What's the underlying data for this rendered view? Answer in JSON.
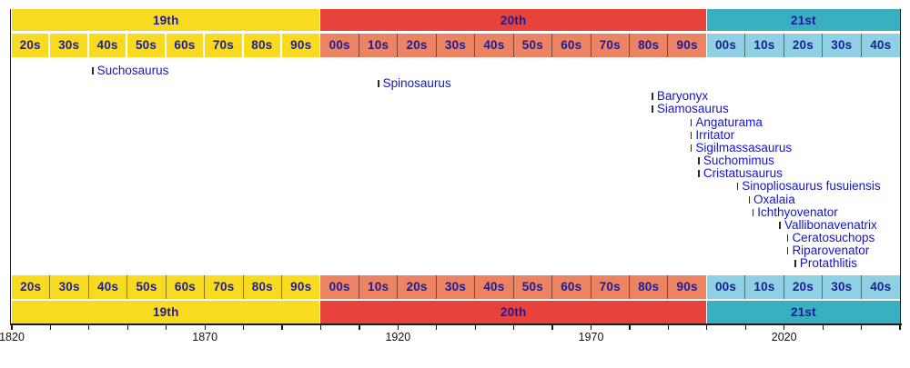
{
  "chart_data": {
    "type": "scatter",
    "subtype": "timeline-of-naming",
    "x_axis": {
      "min": 1820,
      "max": 2050,
      "tick_step_years": 10,
      "label_years": [
        1820,
        1870,
        1920,
        1970,
        2020
      ],
      "labels": [
        "1820",
        "1870",
        "1920",
        "1970",
        "2020"
      ]
    },
    "centuries": [
      {
        "label": "19th",
        "start": 1820,
        "end": 1900,
        "band_color": "#f8da21",
        "cell_color": "#f8da21",
        "top_separator": "#ffffff",
        "bottom_separator": "rgba(0,0,0,0.45)",
        "decade_labels": [
          "20s",
          "30s",
          "40s",
          "50s",
          "60s",
          "70s",
          "80s",
          "90s"
        ]
      },
      {
        "label": "20th",
        "start": 1900,
        "end": 2000,
        "band_color": "#e9423a",
        "cell_color": "#ec8464",
        "top_separator": "rgba(0,0,0,0.45)",
        "bottom_separator": "rgba(0,0,0,0.45)",
        "decade_labels": [
          "00s",
          "10s",
          "20s",
          "30s",
          "40s",
          "50s",
          "60s",
          "70s",
          "80s",
          "90s"
        ]
      },
      {
        "label": "21st",
        "start": 2000,
        "end": 2050,
        "band_color": "#3aafc1",
        "cell_color": "#8fd0e3",
        "top_separator": "rgba(0,0,0,0.45)",
        "bottom_separator": "rgba(0,0,0,0.45)",
        "decade_labels": [
          "00s",
          "10s",
          "20s",
          "30s",
          "40s"
        ]
      }
    ],
    "taxa": [
      {
        "name": "Suchosaurus",
        "year": 1841
      },
      {
        "name": "Spinosaurus",
        "year": 1915
      },
      {
        "name": "Baryonyx",
        "year": 1986
      },
      {
        "name": "Siamosaurus",
        "year": 1986
      },
      {
        "name": "Angaturama",
        "year": 1996
      },
      {
        "name": "Irritator",
        "year": 1996
      },
      {
        "name": "Sigilmassasaurus",
        "year": 1996
      },
      {
        "name": "Suchomimus",
        "year": 1998
      },
      {
        "name": "Cristatusaurus",
        "year": 1998
      },
      {
        "name": "Sinopliosaurus fusuiensis",
        "year": 2008
      },
      {
        "name": "Oxalaia",
        "year": 2011
      },
      {
        "name": "Ichthyovenator",
        "year": 2012
      },
      {
        "name": "Vallibonavenatrix",
        "year": 2019
      },
      {
        "name": "Ceratosuchops",
        "year": 2021
      },
      {
        "name": "Riparovenator",
        "year": 2021
      },
      {
        "name": "Protathlitis",
        "year": 2023
      }
    ],
    "colors": {
      "band_label_text": "#1c1c9b",
      "taxon_label_text": "#1414cc",
      "taxon_tick": "#2b2b2b",
      "axis": "#1a1a1a",
      "century_gap_separator": "#ffffff",
      "background": "#ffffff"
    }
  }
}
